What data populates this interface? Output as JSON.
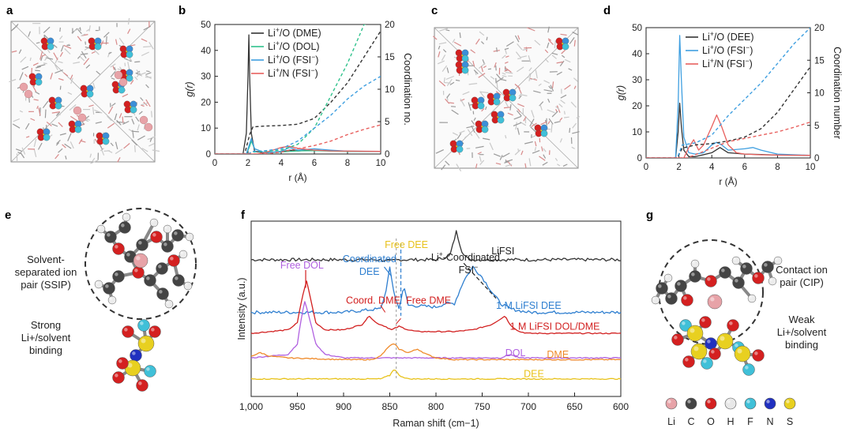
{
  "panel_labels": {
    "a": "a",
    "b": "b",
    "c": "c",
    "d": "d",
    "e": "e",
    "f": "f",
    "g": "g"
  },
  "colors": {
    "black": "#333333",
    "green": "#2fc28c",
    "blue": "#3f9fe0",
    "red": "#e8605e",
    "dblue": "#2f7fd0",
    "purple": "#b060e0",
    "orange": "#ef8a2a",
    "yellow": "#e8c21a",
    "darkred": "#d22020"
  },
  "chart_data": [
    {
      "id": "b",
      "type": "line",
      "xlabel": "r (Å)",
      "ylabel": "g(r)",
      "y2label": "Coordination no.",
      "xlim": [
        0,
        10
      ],
      "ylim": [
        0,
        50
      ],
      "y2lim": [
        0,
        20
      ],
      "xticks": [
        "0",
        "2",
        "4",
        "6",
        "8",
        "10"
      ],
      "yticks": [
        "0",
        "10",
        "20",
        "30",
        "40",
        "50"
      ],
      "y2ticks": [
        "0",
        "5",
        "10",
        "15",
        "20"
      ],
      "legend": [
        "Li+/O (DME)",
        "Li+/O (DOL)",
        "Li+/O (FSI−)",
        "Li+/N (FSI−)"
      ],
      "series": [
        {
          "name": "Li+/O (DME) g(r)",
          "color": "black",
          "dash": false,
          "axis": "left",
          "x": [
            0,
            1.7,
            1.9,
            2.0,
            2.05,
            2.1,
            2.2,
            2.4,
            3,
            4,
            4.5,
            5,
            6,
            7,
            8,
            9,
            10
          ],
          "y": [
            0,
            0,
            8,
            30,
            46,
            30,
            8,
            1,
            0.5,
            0.8,
            1.5,
            1.2,
            1.5,
            1.2,
            1.1,
            1.0,
            1.0
          ]
        },
        {
          "name": "Li+/O (DOL) g(r)",
          "color": "green",
          "dash": false,
          "axis": "left",
          "x": [
            0,
            1.9,
            2.1,
            2.2,
            2.4,
            3,
            4,
            5,
            6,
            7,
            8,
            10
          ],
          "y": [
            0,
            0,
            3,
            5,
            2,
            0.5,
            0.8,
            1.2,
            1.3,
            1.1,
            1.0,
            1.0
          ]
        },
        {
          "name": "Li+/O (FSI−) g(r)",
          "color": "blue",
          "dash": false,
          "axis": "left",
          "x": [
            0,
            1.9,
            2.1,
            2.2,
            2.4,
            3,
            4,
            4.5,
            5,
            6,
            7,
            8,
            10
          ],
          "y": [
            0,
            0,
            4,
            6,
            2,
            0.5,
            1,
            2.5,
            1.5,
            2,
            1.5,
            1.1,
            1.0
          ]
        },
        {
          "name": "Li+/N (FSI−) g(r)",
          "color": "red",
          "dash": false,
          "axis": "left",
          "x": [
            0,
            2.5,
            3,
            3.5,
            4,
            4.5,
            5,
            6,
            7,
            8,
            10
          ],
          "y": [
            0,
            0,
            0.5,
            1.5,
            2.5,
            3,
            2.2,
            1.5,
            1.2,
            1.1,
            1.0
          ]
        },
        {
          "name": "Li+/O (DME) CN",
          "color": "black",
          "dash": true,
          "axis": "right",
          "x": [
            0,
            1.8,
            2.1,
            2.3,
            3,
            4,
            5,
            6,
            7,
            8,
            9,
            10
          ],
          "y": [
            0,
            0,
            3,
            4.2,
            4.3,
            4.4,
            4.6,
            5.5,
            8,
            11,
            15,
            19
          ]
        },
        {
          "name": "Li+/O (DOL) CN",
          "color": "green",
          "dash": true,
          "axis": "right",
          "x": [
            0,
            2,
            2.3,
            3,
            4,
            5,
            6,
            7,
            8,
            9,
            10
          ],
          "y": [
            0,
            0,
            0.3,
            0.4,
            0.6,
            1.5,
            4,
            9,
            14,
            20,
            20.5
          ]
        },
        {
          "name": "Li+/O (FSI−) CN",
          "color": "blue",
          "dash": true,
          "axis": "right",
          "x": [
            0,
            2,
            2.3,
            3,
            4,
            5,
            6,
            7,
            8,
            9,
            10
          ],
          "y": [
            0,
            0,
            0.4,
            0.5,
            0.8,
            2,
            4,
            6,
            8.5,
            10.5,
            12
          ]
        },
        {
          "name": "Li+/N (FSI−) CN",
          "color": "red",
          "dash": true,
          "axis": "right",
          "x": [
            0,
            3,
            4,
            5,
            6,
            7,
            8,
            9,
            10
          ],
          "y": [
            0,
            0,
            0.3,
            0.8,
            1.3,
            2,
            3,
            3.8,
            4.5
          ]
        }
      ]
    },
    {
      "id": "d",
      "type": "line",
      "xlabel": "r (Å)",
      "ylabel": "g(r)",
      "y2label": "Coordination number",
      "xlim": [
        0,
        10
      ],
      "ylim": [
        0,
        50
      ],
      "y2lim": [
        0,
        20
      ],
      "xticks": [
        "0",
        "2",
        "4",
        "6",
        "8",
        "10"
      ],
      "yticks": [
        "0",
        "10",
        "20",
        "30",
        "40",
        "50"
      ],
      "y2ticks": [
        "0",
        "5",
        "10",
        "15",
        "20"
      ],
      "legend": [
        "Li+/O (DEE)",
        "Li+/O (FSI−)",
        "Li+/N (FSI−)"
      ],
      "series": [
        {
          "name": "Li+/O (DEE) g(r)",
          "color": "black",
          "dash": false,
          "axis": "left",
          "x": [
            0,
            1.8,
            1.95,
            2.05,
            2.15,
            2.3,
            2.6,
            3,
            4,
            4.5,
            5,
            6,
            7,
            8,
            10
          ],
          "y": [
            0,
            0,
            10,
            21,
            12,
            3,
            0.5,
            0.5,
            2,
            4,
            2,
            1.5,
            1.3,
            1.1,
            1.0
          ]
        },
        {
          "name": "Li+/O (FSI−) g(r)",
          "color": "blue",
          "dash": false,
          "axis": "left",
          "x": [
            0,
            1.8,
            1.95,
            2.05,
            2.15,
            2.3,
            2.6,
            3,
            3.5,
            4,
            4.3,
            4.6,
            5,
            6,
            6.5,
            7,
            8,
            10
          ],
          "y": [
            0,
            0,
            20,
            47,
            30,
            8,
            2,
            1.5,
            2,
            5,
            6,
            5,
            3,
            3.5,
            4,
            3,
            1.5,
            1.0
          ]
        },
        {
          "name": "Li+/N (FSI−) g(r)",
          "color": "red",
          "dash": false,
          "axis": "left",
          "x": [
            0,
            2.3,
            2.6,
            2.9,
            3.2,
            3.5,
            4,
            4.3,
            4.6,
            5,
            5.5,
            6,
            7,
            8,
            10
          ],
          "y": [
            0,
            0,
            4,
            7,
            3,
            5,
            12,
            16.5,
            12,
            5,
            2,
            1.5,
            1.2,
            1.1,
            1.0
          ]
        },
        {
          "name": "Li+/O (DEE) CN",
          "color": "black",
          "dash": true,
          "axis": "right",
          "x": [
            0,
            1.9,
            2.2,
            3,
            4,
            5,
            6,
            7,
            8,
            9,
            10
          ],
          "y": [
            0,
            0,
            1.5,
            2,
            2.2,
            2.6,
            3.2,
            4.5,
            7,
            10.5,
            14
          ]
        },
        {
          "name": "Li+/O (FSI−) CN",
          "color": "blue",
          "dash": true,
          "axis": "right",
          "x": [
            0,
            1.9,
            2.2,
            3,
            4,
            4.5,
            5,
            6,
            7,
            8,
            9,
            10
          ],
          "y": [
            0,
            0,
            2,
            2.3,
            3.5,
            5,
            6.5,
            9,
            11.5,
            14.5,
            17.5,
            20
          ]
        },
        {
          "name": "Li+/N (FSI−) CN",
          "color": "red",
          "dash": true,
          "axis": "right",
          "x": [
            0,
            2.5,
            3,
            4,
            5,
            6,
            7,
            8,
            9,
            10
          ],
          "y": [
            0,
            0,
            0.5,
            1.5,
            2.5,
            3,
            3.5,
            4,
            4.7,
            5.5
          ]
        }
      ]
    },
    {
      "id": "f",
      "type": "line",
      "xlabel": "Raman shift (cm−1)",
      "ylabel": "Intensity (a.u.)",
      "xlim": [
        1000,
        600
      ],
      "ylim": [
        0,
        1
      ],
      "xticks": [
        "1,000",
        "950",
        "900",
        "850",
        "800",
        "750",
        "700",
        "650",
        "600"
      ],
      "series": [
        {
          "name": "LiFSI",
          "color": "black",
          "baseline": 0.78,
          "x": [
            1000,
            900,
            860,
            850,
            840,
            800,
            785,
            778,
            772,
            765,
            750,
            700,
            600
          ],
          "y": [
            0,
            0,
            0,
            -0.01,
            0,
            0,
            0.02,
            0.16,
            0.05,
            0,
            0,
            0,
            0
          ]
        },
        {
          "name": "1 M LiFSI DEE",
          "color": "dblue",
          "baseline": 0.48,
          "x": [
            1000,
            950,
            900,
            860,
            855,
            850,
            845,
            840,
            835,
            830,
            800,
            790,
            780,
            770,
            760,
            750,
            740,
            730,
            720,
            700,
            600
          ],
          "y": [
            0,
            0,
            0,
            0.02,
            0.1,
            0.25,
            0.1,
            0.02,
            0.15,
            0.04,
            0.03,
            0.05,
            0.05,
            0.18,
            0.26,
            0.2,
            0.12,
            0.05,
            0.02,
            0,
            0
          ]
        },
        {
          "name": "1 M LiFSI DOL/DME",
          "color": "darkred",
          "baseline": 0.36,
          "x": [
            1000,
            960,
            950,
            945,
            940,
            935,
            930,
            920,
            900,
            880,
            872,
            865,
            855,
            848,
            840,
            830,
            820,
            800,
            780,
            760,
            740,
            725,
            720,
            710,
            700,
            600
          ],
          "y": [
            0,
            0.02,
            0.06,
            0.2,
            0.3,
            0.18,
            0.06,
            0.02,
            0.02,
            0.05,
            0.1,
            0.06,
            0.04,
            0.02,
            0.04,
            0.02,
            0.01,
            0.01,
            0.01,
            0.02,
            0.05,
            0.1,
            0.05,
            0.01,
            0,
            0
          ]
        },
        {
          "name": "DOL",
          "color": "purple",
          "baseline": 0.22,
          "x": [
            1000,
            960,
            950,
            945,
            942,
            938,
            930,
            920,
            900,
            880,
            860,
            800,
            730,
            720,
            710,
            700,
            600
          ],
          "y": [
            0,
            0.02,
            0.08,
            0.25,
            0.32,
            0.25,
            0.08,
            0.02,
            0,
            0,
            0,
            0,
            0,
            0.02,
            0,
            0,
            0
          ]
        },
        {
          "name": "DME",
          "color": "orange",
          "baseline": 0.21,
          "x": [
            1000,
            990,
            980,
            960,
            900,
            870,
            860,
            850,
            845,
            840,
            830,
            820,
            810,
            800,
            780,
            700,
            600
          ],
          "y": [
            0.02,
            0.04,
            0.02,
            0.01,
            0,
            0,
            0.02,
            0.08,
            0.09,
            0.06,
            0.04,
            0.06,
            0.03,
            0.01,
            0,
            0,
            0
          ]
        },
        {
          "name": "DEE",
          "color": "yellow",
          "baseline": 0.1,
          "x": [
            1000,
            900,
            860,
            850,
            845,
            840,
            830,
            800,
            700,
            600
          ],
          "y": [
            0,
            0,
            0,
            0.02,
            0.06,
            0.02,
            0,
            0,
            0,
            0
          ]
        }
      ],
      "series_labels": [
        "LiFSI",
        "1 M LiFSI DEE",
        "1 M LiFSI DOL/DME",
        "DOL",
        "DME",
        "DEE"
      ],
      "annotations": {
        "free_dol": "Free DOL",
        "free_dee": "Free DEE",
        "coordinated": "Coordinated",
        "dee": "DEE",
        "li_coordinated": "Li+-Coordinated",
        "fsi": "FSI−",
        "coord_dme": "Coord. DME",
        "free_dme": "Free DME"
      }
    }
  ],
  "panel_e": {
    "ssip_lines": [
      "Solvent-",
      "separated ion",
      "pair (SSIP)"
    ],
    "strong_lines": [
      "Strong",
      "Li+/solvent",
      "binding"
    ]
  },
  "panel_g": {
    "cip_lines": [
      "Contact ion",
      "pair (CIP)"
    ],
    "weak_lines": [
      "Weak",
      "Li+/solvent",
      "binding"
    ],
    "legend": [
      {
        "label": "Li",
        "color": "#e7a3a8"
      },
      {
        "label": "C",
        "color": "#444444"
      },
      {
        "label": "O",
        "color": "#d42020"
      },
      {
        "label": "H",
        "color": "#e8e8e8"
      },
      {
        "label": "F",
        "color": "#40c0d8"
      },
      {
        "label": "N",
        "color": "#2030c0"
      },
      {
        "label": "S",
        "color": "#e8d020"
      }
    ]
  }
}
